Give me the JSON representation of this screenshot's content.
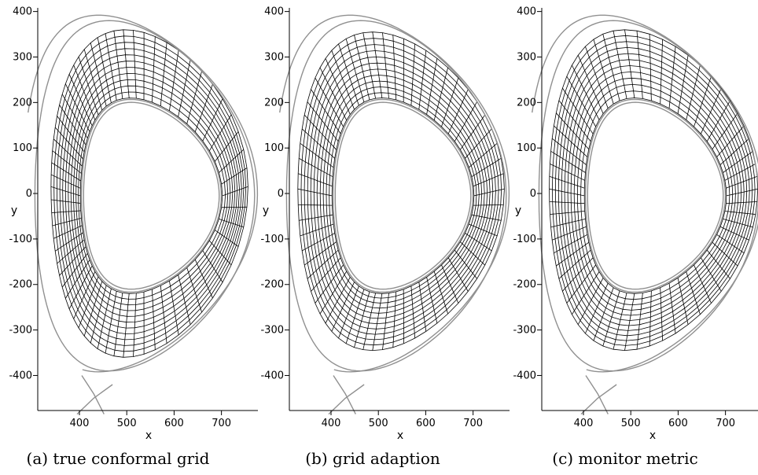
{
  "axes": {
    "x_label": "x",
    "y_label": "y",
    "x_ticks": [
      400,
      500,
      600,
      700
    ],
    "y_ticks": [
      400,
      300,
      200,
      100,
      0,
      -100,
      -200,
      -300,
      -400
    ],
    "x_range": [
      312,
      777
    ],
    "y_range": [
      -477,
      408
    ]
  },
  "panels": [
    {
      "caption": "(a) true conformal grid",
      "grid_type": "conformal"
    },
    {
      "caption": "(b) grid adaption",
      "grid_type": "adaption"
    },
    {
      "caption": "(c) monitor metric",
      "grid_type": "monitor"
    }
  ],
  "grid": {
    "radial_cells": 11,
    "poloidal_cells": 64
  },
  "colors": {
    "grid": "#000000",
    "flux_surfaces": "#909090",
    "axes": "#000000"
  }
}
